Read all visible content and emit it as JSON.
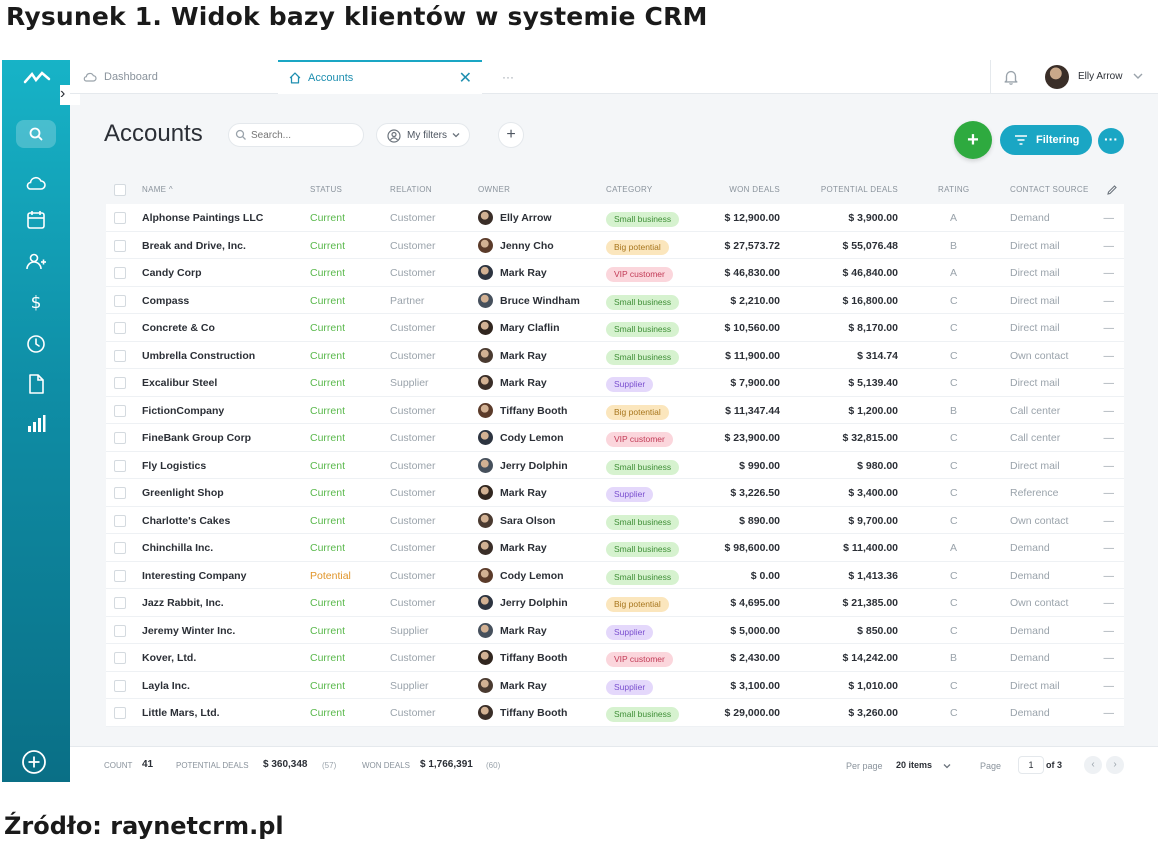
{
  "figure": {
    "caption": "Rysunek 1. Widok bazy klientów w systemie CRM",
    "source": "Źródło: raynetcrm.pl"
  },
  "tabs": {
    "dashboard": "Dashboard",
    "accounts": "Accounts",
    "more": "···"
  },
  "user": {
    "name": "Elly Arrow"
  },
  "header": {
    "title": "Accounts",
    "search_placeholder": "Search...",
    "filters_label": "My filters",
    "add_label": "+",
    "filtering_label": "Filtering",
    "more_label": "···"
  },
  "columns": {
    "name": "NAME ^",
    "status": "STATUS",
    "relation": "RELATION",
    "owner": "OWNER",
    "category": "CATEGORY",
    "won_deals": "WON DEALS",
    "potential_deals": "POTENTIAL DEALS",
    "rating": "RATING",
    "contact_source": "CONTACT SOURCE"
  },
  "rows": [
    {
      "name": "Alphonse Paintings LLC",
      "status": "Current",
      "relation": "Customer",
      "owner": "Elly Arrow",
      "category": "Small business",
      "won": "$ 12,900.00",
      "potential": "$ 3,900.00",
      "rating": "A",
      "source": "Demand"
    },
    {
      "name": "Break and Drive, Inc.",
      "status": "Current",
      "relation": "Customer",
      "owner": "Jenny Cho",
      "category": "Big potential",
      "won": "$ 27,573.72",
      "potential": "$ 55,076.48",
      "rating": "B",
      "source": "Direct mail"
    },
    {
      "name": "Candy Corp",
      "status": "Current",
      "relation": "Customer",
      "owner": "Mark Ray",
      "category": "VIP customer",
      "won": "$ 46,830.00",
      "potential": "$ 46,840.00",
      "rating": "A",
      "source": "Direct mail"
    },
    {
      "name": "Compass",
      "status": "Current",
      "relation": "Partner",
      "owner": "Bruce Windham",
      "category": "Small business",
      "won": "$ 2,210.00",
      "potential": "$ 16,800.00",
      "rating": "C",
      "source": "Direct mail"
    },
    {
      "name": "Concrete & Co",
      "status": "Current",
      "relation": "Customer",
      "owner": "Mary Claflin",
      "category": "Small business",
      "won": "$ 10,560.00",
      "potential": "$ 8,170.00",
      "rating": "C",
      "source": "Direct mail"
    },
    {
      "name": "Umbrella Construction",
      "status": "Current",
      "relation": "Customer",
      "owner": "Mark Ray",
      "category": "Small business",
      "won": "$ 11,900.00",
      "potential": "$ 314.74",
      "rating": "C",
      "source": "Own contact"
    },
    {
      "name": "Excalibur Steel",
      "status": "Current",
      "relation": "Supplier",
      "owner": "Mark Ray",
      "category": "Supplier",
      "won": "$ 7,900.00",
      "potential": "$ 5,139.40",
      "rating": "C",
      "source": "Direct mail"
    },
    {
      "name": "FictionCompany",
      "status": "Current",
      "relation": "Customer",
      "owner": "Tiffany Booth",
      "category": "Big potential",
      "won": "$ 11,347.44",
      "potential": "$ 1,200.00",
      "rating": "B",
      "source": "Call center"
    },
    {
      "name": "FineBank Group Corp",
      "status": "Current",
      "relation": "Customer",
      "owner": "Cody Lemon",
      "category": "VIP customer",
      "won": "$ 23,900.00",
      "potential": "$ 32,815.00",
      "rating": "C",
      "source": "Call center"
    },
    {
      "name": "Fly Logistics",
      "status": "Current",
      "relation": "Customer",
      "owner": "Jerry Dolphin",
      "category": "Small business",
      "won": "$ 990.00",
      "potential": "$ 980.00",
      "rating": "C",
      "source": "Direct mail"
    },
    {
      "name": "Greenlight Shop",
      "status": "Current",
      "relation": "Customer",
      "owner": "Mark Ray",
      "category": "Supplier",
      "won": "$ 3,226.50",
      "potential": "$ 3,400.00",
      "rating": "C",
      "source": "Reference"
    },
    {
      "name": "Charlotte's Cakes",
      "status": "Current",
      "relation": "Customer",
      "owner": "Sara Olson",
      "category": "Small business",
      "won": "$ 890.00",
      "potential": "$ 9,700.00",
      "rating": "C",
      "source": "Own contact"
    },
    {
      "name": "Chinchilla Inc.",
      "status": "Current",
      "relation": "Customer",
      "owner": "Mark Ray",
      "category": "Small business",
      "won": "$ 98,600.00",
      "potential": "$ 11,400.00",
      "rating": "A",
      "source": "Demand"
    },
    {
      "name": "Interesting Company",
      "status": "Potential",
      "relation": "Customer",
      "owner": "Cody Lemon",
      "category": "Small business",
      "won": "$ 0.00",
      "potential": "$ 1,413.36",
      "rating": "C",
      "source": "Demand"
    },
    {
      "name": "Jazz Rabbit, Inc.",
      "status": "Current",
      "relation": "Customer",
      "owner": "Jerry Dolphin",
      "category": "Big potential",
      "won": "$ 4,695.00",
      "potential": "$ 21,385.00",
      "rating": "C",
      "source": "Own contact"
    },
    {
      "name": "Jeremy Winter Inc.",
      "status": "Current",
      "relation": "Supplier",
      "owner": "Mark Ray",
      "category": "Supplier",
      "won": "$ 5,000.00",
      "potential": "$ 850.00",
      "rating": "C",
      "source": "Demand"
    },
    {
      "name": "Kover, Ltd.",
      "status": "Current",
      "relation": "Customer",
      "owner": "Tiffany Booth",
      "category": "VIP customer",
      "won": "$ 2,430.00",
      "potential": "$ 14,242.00",
      "rating": "B",
      "source": "Demand"
    },
    {
      "name": "Layla Inc.",
      "status": "Current",
      "relation": "Supplier",
      "owner": "Mark Ray",
      "category": "Supplier",
      "won": "$ 3,100.00",
      "potential": "$ 1,010.00",
      "rating": "C",
      "source": "Direct mail"
    },
    {
      "name": "Little Mars, Ltd.",
      "status": "Current",
      "relation": "Customer",
      "owner": "Tiffany Booth",
      "category": "Small business",
      "won": "$ 29,000.00",
      "potential": "$ 3,260.00",
      "rating": "C",
      "source": "Demand"
    }
  ],
  "footer": {
    "count_label": "COUNT",
    "count": "41",
    "potential_label": "POTENTIAL DEALS",
    "potential_value": "$ 360,348",
    "potential_count": "(57)",
    "won_label": "WON DEALS",
    "won_value": "$ 1,766,391",
    "won_count": "(60)",
    "per_page_label": "Per page",
    "per_page_value": "20 items",
    "page_label": "Page",
    "page_current": "1",
    "page_total": "of 3"
  },
  "colors": {
    "accent": "#1aa6c4",
    "add_green": "#2eaa3f",
    "status_current": "#59b84b",
    "status_potential": "#e0952a"
  },
  "icons": [
    "logo-icon",
    "search-icon",
    "cloud-icon",
    "calendar-icon",
    "contacts-icon",
    "dollar-icon",
    "clock-icon",
    "document-icon",
    "chart-icon",
    "plus-circle-icon",
    "bell-icon",
    "chevron-down-icon",
    "close-icon",
    "filter-icon",
    "pencil-icon"
  ]
}
